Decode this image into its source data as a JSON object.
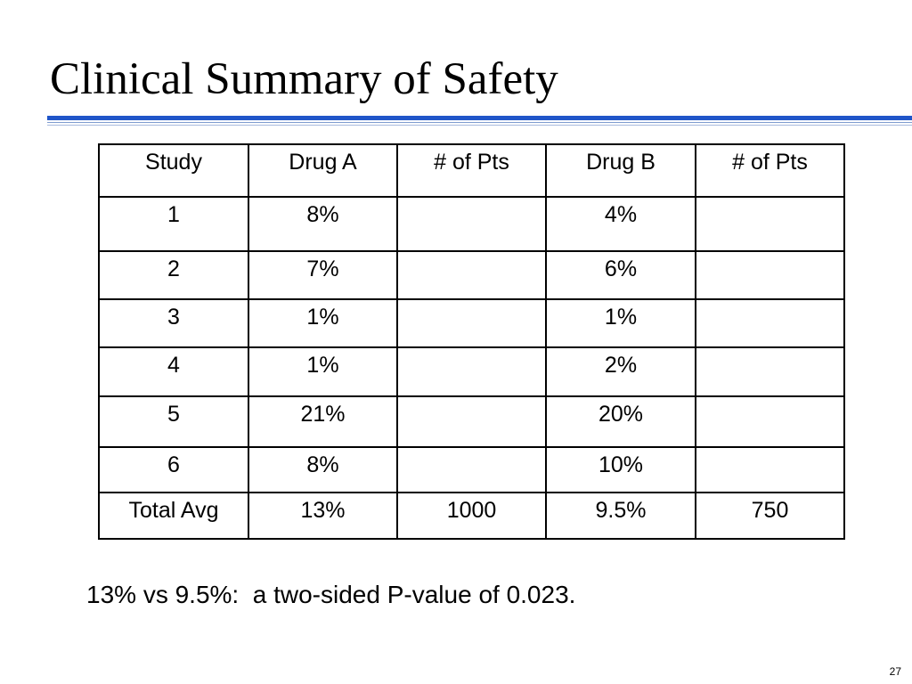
{
  "slide": {
    "title": "Clinical Summary of Safety",
    "footnote": "13% vs 9.5%:  a two-sided P-value of 0.023.",
    "page_number": "27"
  },
  "table": {
    "headers": [
      "Study",
      "Drug A",
      "# of Pts",
      "Drug B",
      "# of Pts"
    ],
    "rows": [
      [
        "1",
        "8%",
        "",
        "4%",
        ""
      ],
      [
        "2",
        "7%",
        "",
        "6%",
        ""
      ],
      [
        "3",
        "1%",
        "",
        "1%",
        ""
      ],
      [
        "4",
        "1%",
        "",
        "2%",
        ""
      ],
      [
        "5",
        "21%",
        "",
        "20%",
        ""
      ],
      [
        "6",
        "8%",
        "",
        "10%",
        ""
      ],
      [
        "Total Avg",
        "13%",
        "1000",
        "9.5%",
        "750"
      ]
    ]
  },
  "colors": {
    "title_rule": "#1f55c9",
    "text": "#000000",
    "background": "#ffffff"
  }
}
